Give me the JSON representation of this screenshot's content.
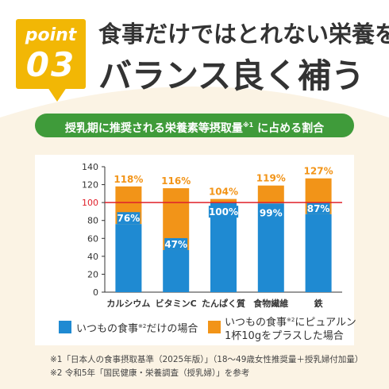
{
  "header": {
    "badge_word": "point",
    "badge_number": "03",
    "title_line1": "食事だけではとれない栄養を",
    "title_line2": "バランス良く補う"
  },
  "subtitle": {
    "text": "授乳期に推奨される栄養素等摂取量",
    "mark": "※1",
    "suffix": " に占める割合"
  },
  "colors": {
    "orange": "#f29418",
    "blue": "#1f8ad2",
    "green": "#3f9b3a",
    "badge": "#f2b705",
    "reference_line": "#e0202a"
  },
  "chart_data": {
    "type": "bar",
    "stacked": true,
    "categories": [
      "カルシウム",
      "ビタミンC",
      "たんぱく質",
      "食物繊維",
      "鉄"
    ],
    "series": [
      {
        "name": "いつもの食事※2だけの場合",
        "values": [
          76,
          47,
          100,
          99,
          87
        ],
        "labels": [
          "76%",
          "47%",
          "100%",
          "99%",
          "87%"
        ],
        "color": "#1f8ad2"
      },
      {
        "name": "いつもの食事※2にピュアルン1杯10gをプラスした場合",
        "totals": [
          118,
          116,
          104,
          119,
          127
        ],
        "labels": [
          "118%",
          "116%",
          "104%",
          "119%",
          "127%"
        ],
        "color": "#f29418"
      }
    ],
    "ylim": [
      0,
      140
    ],
    "yticks": [
      0,
      20,
      40,
      60,
      80,
      100,
      120,
      140
    ],
    "reference_line": 100,
    "grid": false
  },
  "legend": {
    "item1": {
      "text": "いつもの食事",
      "mark": "※2",
      "suffix": "だけの場合"
    },
    "item2": {
      "line1_a": "いつもの食事",
      "mark": "※2",
      "line1_b": "にピュアルン",
      "line2": "1杯10gをプラスした場合"
    }
  },
  "notes": {
    "note1": "※1「日本人の食事摂取基準（2025年版）」（18〜49歳女性推奨量＋授乳婦付加量）",
    "note2": "※2 令和5年「国民健康・栄養調査（授乳婦）」を参考"
  }
}
